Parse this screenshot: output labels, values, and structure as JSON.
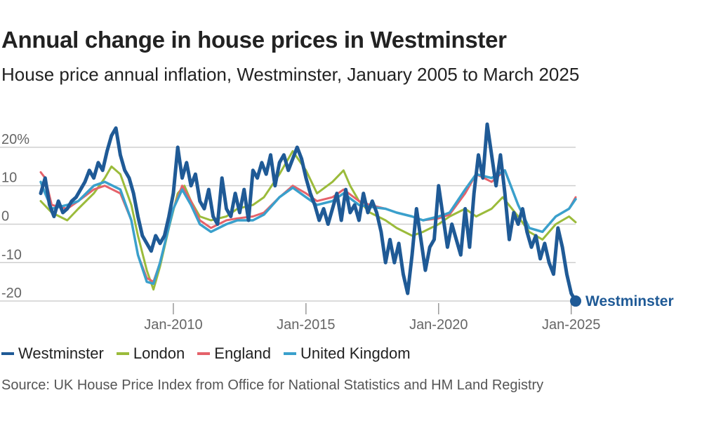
{
  "title": "Annual change in house prices in Westminster",
  "subtitle": "House price annual inflation, Westminster, January 2005 to March 2025",
  "source": "Source: UK House Price Index from Office for National Statistics and HM Land Registry",
  "colors": {
    "Westminster": "#1f5a96",
    "London": "#9bbb3b",
    "England": "#e5626a",
    "United Kingdom": "#3aa0cc",
    "grid": "#cfcfcf",
    "axis_text": "#666666"
  },
  "chart_data": {
    "type": "line",
    "title": "Annual change in house prices in Westminster",
    "xlabel": "",
    "ylabel": "",
    "ylim": [
      -22,
      26
    ],
    "xlim": [
      "2005-01",
      "2025-03"
    ],
    "y_ticks": [
      20,
      10,
      0,
      -10,
      -20
    ],
    "y_tick_labels": [
      "20%",
      "10",
      "0",
      "-10",
      "-20"
    ],
    "x_ticks": [
      "2010-01",
      "2015-01",
      "2020-01",
      "2025-01"
    ],
    "x_tick_labels": [
      "Jan-2010",
      "Jan-2015",
      "Jan-2020",
      "Jan-2025"
    ],
    "grid": "horizontal",
    "legend": "bottom",
    "end_label": "Westminster",
    "series": [
      {
        "name": "Westminster",
        "points": [
          [
            "2005-01",
            8
          ],
          [
            "2005-03",
            12
          ],
          [
            "2005-05",
            5
          ],
          [
            "2005-07",
            2
          ],
          [
            "2005-09",
            6
          ],
          [
            "2005-11",
            3
          ],
          [
            "2006-01",
            4
          ],
          [
            "2006-03",
            6
          ],
          [
            "2006-05",
            7
          ],
          [
            "2006-07",
            9
          ],
          [
            "2006-09",
            11
          ],
          [
            "2006-11",
            14
          ],
          [
            "2007-01",
            12
          ],
          [
            "2007-03",
            16
          ],
          [
            "2007-05",
            14
          ],
          [
            "2007-07",
            19
          ],
          [
            "2007-09",
            23
          ],
          [
            "2007-11",
            25
          ],
          [
            "2008-01",
            18
          ],
          [
            "2008-03",
            14
          ],
          [
            "2008-05",
            12
          ],
          [
            "2008-07",
            8
          ],
          [
            "2008-09",
            2
          ],
          [
            "2008-11",
            -3
          ],
          [
            "2009-01",
            -5
          ],
          [
            "2009-03",
            -7
          ],
          [
            "2009-05",
            -3
          ],
          [
            "2009-07",
            -5
          ],
          [
            "2009-09",
            -3
          ],
          [
            "2009-11",
            2
          ],
          [
            "2010-01",
            8
          ],
          [
            "2010-03",
            20
          ],
          [
            "2010-05",
            12
          ],
          [
            "2010-07",
            16
          ],
          [
            "2010-09",
            10
          ],
          [
            "2010-11",
            13
          ],
          [
            "2011-01",
            6
          ],
          [
            "2011-03",
            4
          ],
          [
            "2011-05",
            9
          ],
          [
            "2011-07",
            2
          ],
          [
            "2011-09",
            0
          ],
          [
            "2011-11",
            12
          ],
          [
            "2012-01",
            4
          ],
          [
            "2012-03",
            2
          ],
          [
            "2012-05",
            8
          ],
          [
            "2012-07",
            3
          ],
          [
            "2012-09",
            9
          ],
          [
            "2012-11",
            1
          ],
          [
            "2013-01",
            14
          ],
          [
            "2013-03",
            12
          ],
          [
            "2013-05",
            16
          ],
          [
            "2013-07",
            13
          ],
          [
            "2013-09",
            18
          ],
          [
            "2013-11",
            10
          ],
          [
            "2014-01",
            16
          ],
          [
            "2014-03",
            18
          ],
          [
            "2014-05",
            14
          ],
          [
            "2014-07",
            17
          ],
          [
            "2014-09",
            20
          ],
          [
            "2014-11",
            17
          ],
          [
            "2015-01",
            12
          ],
          [
            "2015-03",
            8
          ],
          [
            "2015-05",
            5
          ],
          [
            "2015-07",
            1
          ],
          [
            "2015-09",
            4
          ],
          [
            "2015-11",
            0
          ],
          [
            "2016-01",
            4
          ],
          [
            "2016-03",
            8
          ],
          [
            "2016-05",
            1
          ],
          [
            "2016-07",
            9
          ],
          [
            "2016-09",
            3
          ],
          [
            "2016-11",
            5
          ],
          [
            "2017-01",
            1
          ],
          [
            "2017-03",
            8
          ],
          [
            "2017-05",
            3
          ],
          [
            "2017-07",
            6
          ],
          [
            "2017-09",
            3
          ],
          [
            "2017-11",
            -2
          ],
          [
            "2018-01",
            -10
          ],
          [
            "2018-03",
            -4
          ],
          [
            "2018-05",
            -10
          ],
          [
            "2018-07",
            -5
          ],
          [
            "2018-09",
            -13
          ],
          [
            "2018-11",
            -18
          ],
          [
            "2019-01",
            -8
          ],
          [
            "2019-03",
            4
          ],
          [
            "2019-05",
            -4
          ],
          [
            "2019-07",
            -12
          ],
          [
            "2019-09",
            -6
          ],
          [
            "2019-11",
            -4
          ],
          [
            "2020-01",
            10
          ],
          [
            "2020-03",
            2
          ],
          [
            "2020-05",
            -6
          ],
          [
            "2020-07",
            0
          ],
          [
            "2020-09",
            -4
          ],
          [
            "2020-11",
            -8
          ],
          [
            "2021-01",
            4
          ],
          [
            "2021-03",
            -6
          ],
          [
            "2021-05",
            8
          ],
          [
            "2021-07",
            18
          ],
          [
            "2021-09",
            12
          ],
          [
            "2021-11",
            26
          ],
          [
            "2022-01",
            18
          ],
          [
            "2022-03",
            10
          ],
          [
            "2022-05",
            18
          ],
          [
            "2022-07",
            8
          ],
          [
            "2022-09",
            -4
          ],
          [
            "2022-11",
            3
          ],
          [
            "2023-01",
            0
          ],
          [
            "2023-03",
            4
          ],
          [
            "2023-05",
            -2
          ],
          [
            "2023-07",
            -6
          ],
          [
            "2023-09",
            -3
          ],
          [
            "2023-11",
            -9
          ],
          [
            "2024-01",
            -5
          ],
          [
            "2024-03",
            -10
          ],
          [
            "2024-05",
            -13
          ],
          [
            "2024-07",
            -1
          ],
          [
            "2024-09",
            -6
          ],
          [
            "2024-11",
            -13
          ],
          [
            "2025-01",
            -18
          ],
          [
            "2025-03",
            -20
          ]
        ]
      },
      {
        "name": "London",
        "points": [
          [
            "2005-01",
            6
          ],
          [
            "2005-06",
            3
          ],
          [
            "2006-01",
            1
          ],
          [
            "2006-06",
            4
          ],
          [
            "2007-01",
            8
          ],
          [
            "2007-06",
            12
          ],
          [
            "2007-09",
            15
          ],
          [
            "2008-01",
            13
          ],
          [
            "2008-06",
            5
          ],
          [
            "2008-09",
            -3
          ],
          [
            "2009-01",
            -12
          ],
          [
            "2009-04",
            -17
          ],
          [
            "2009-07",
            -11
          ],
          [
            "2009-11",
            -1
          ],
          [
            "2010-03",
            8
          ],
          [
            "2010-06",
            10
          ],
          [
            "2010-09",
            6
          ],
          [
            "2011-01",
            2
          ],
          [
            "2011-06",
            1
          ],
          [
            "2012-01",
            2
          ],
          [
            "2012-06",
            4
          ],
          [
            "2013-01",
            5
          ],
          [
            "2013-06",
            7
          ],
          [
            "2014-01",
            13
          ],
          [
            "2014-07",
            19
          ],
          [
            "2015-01",
            14
          ],
          [
            "2015-06",
            8
          ],
          [
            "2016-01",
            11
          ],
          [
            "2016-06",
            14
          ],
          [
            "2016-09",
            10
          ],
          [
            "2017-01",
            6
          ],
          [
            "2017-06",
            3
          ],
          [
            "2018-01",
            1
          ],
          [
            "2018-06",
            -1
          ],
          [
            "2019-01",
            -3
          ],
          [
            "2019-06",
            -2
          ],
          [
            "2020-01",
            0
          ],
          [
            "2020-06",
            2
          ],
          [
            "2021-01",
            4
          ],
          [
            "2021-06",
            2
          ],
          [
            "2022-01",
            4
          ],
          [
            "2022-06",
            7
          ],
          [
            "2023-01",
            2
          ],
          [
            "2023-06",
            -2
          ],
          [
            "2023-12",
            -4
          ],
          [
            "2024-06",
            0
          ],
          [
            "2024-12",
            2
          ],
          [
            "2025-03",
            0.5
          ]
        ]
      },
      {
        "name": "England",
        "points": [
          [
            "2005-01",
            13.5
          ],
          [
            "2005-03",
            12
          ],
          [
            "2005-06",
            5
          ],
          [
            "2006-01",
            4
          ],
          [
            "2006-06",
            6
          ],
          [
            "2007-01",
            9
          ],
          [
            "2007-06",
            10
          ],
          [
            "2008-01",
            8
          ],
          [
            "2008-06",
            1
          ],
          [
            "2008-09",
            -8
          ],
          [
            "2009-01",
            -14
          ],
          [
            "2009-04",
            -15
          ],
          [
            "2009-07",
            -10
          ],
          [
            "2010-01",
            4
          ],
          [
            "2010-05",
            10
          ],
          [
            "2010-09",
            6
          ],
          [
            "2011-01",
            1
          ],
          [
            "2011-06",
            -1
          ],
          [
            "2012-01",
            1
          ],
          [
            "2012-06",
            1.5
          ],
          [
            "2013-01",
            2
          ],
          [
            "2013-06",
            3
          ],
          [
            "2014-01",
            7
          ],
          [
            "2014-07",
            10
          ],
          [
            "2015-01",
            8
          ],
          [
            "2015-06",
            6
          ],
          [
            "2016-01",
            7
          ],
          [
            "2016-06",
            9
          ],
          [
            "2017-01",
            6
          ],
          [
            "2017-06",
            5
          ],
          [
            "2018-01",
            4
          ],
          [
            "2018-06",
            3
          ],
          [
            "2019-01",
            2
          ],
          [
            "2019-06",
            1
          ],
          [
            "2020-01",
            1.5
          ],
          [
            "2020-06",
            2.5
          ],
          [
            "2021-01",
            8
          ],
          [
            "2021-06",
            13
          ],
          [
            "2022-01",
            11
          ],
          [
            "2022-07",
            14
          ],
          [
            "2023-01",
            5
          ],
          [
            "2023-06",
            -1
          ],
          [
            "2023-12",
            -2
          ],
          [
            "2024-06",
            2
          ],
          [
            "2024-12",
            4
          ],
          [
            "2025-03",
            7
          ]
        ]
      },
      {
        "name": "United Kingdom",
        "points": [
          [
            "2005-01",
            11
          ],
          [
            "2005-03",
            8
          ],
          [
            "2005-06",
            4
          ],
          [
            "2006-01",
            5
          ],
          [
            "2006-06",
            6
          ],
          [
            "2007-01",
            10
          ],
          [
            "2007-06",
            11
          ],
          [
            "2008-01",
            9
          ],
          [
            "2008-06",
            1
          ],
          [
            "2008-09",
            -8
          ],
          [
            "2009-01",
            -15
          ],
          [
            "2009-04",
            -15.5
          ],
          [
            "2009-07",
            -10
          ],
          [
            "2010-01",
            4
          ],
          [
            "2010-05",
            9
          ],
          [
            "2010-09",
            5
          ],
          [
            "2011-01",
            0
          ],
          [
            "2011-06",
            -2
          ],
          [
            "2012-01",
            0
          ],
          [
            "2012-06",
            1
          ],
          [
            "2013-01",
            1
          ],
          [
            "2013-06",
            2.5
          ],
          [
            "2014-01",
            7
          ],
          [
            "2014-07",
            9.5
          ],
          [
            "2015-01",
            7
          ],
          [
            "2015-06",
            5
          ],
          [
            "2016-01",
            6
          ],
          [
            "2016-06",
            8
          ],
          [
            "2017-01",
            5
          ],
          [
            "2017-06",
            4.5
          ],
          [
            "2018-01",
            4
          ],
          [
            "2018-06",
            3
          ],
          [
            "2019-01",
            2
          ],
          [
            "2019-06",
            1
          ],
          [
            "2020-01",
            2
          ],
          [
            "2020-06",
            3
          ],
          [
            "2021-01",
            9
          ],
          [
            "2021-06",
            13
          ],
          [
            "2022-01",
            12
          ],
          [
            "2022-07",
            14
          ],
          [
            "2023-01",
            5
          ],
          [
            "2023-06",
            -1
          ],
          [
            "2023-12",
            -2
          ],
          [
            "2024-06",
            2
          ],
          [
            "2024-12",
            4
          ],
          [
            "2025-03",
            6.5
          ]
        ]
      }
    ]
  }
}
